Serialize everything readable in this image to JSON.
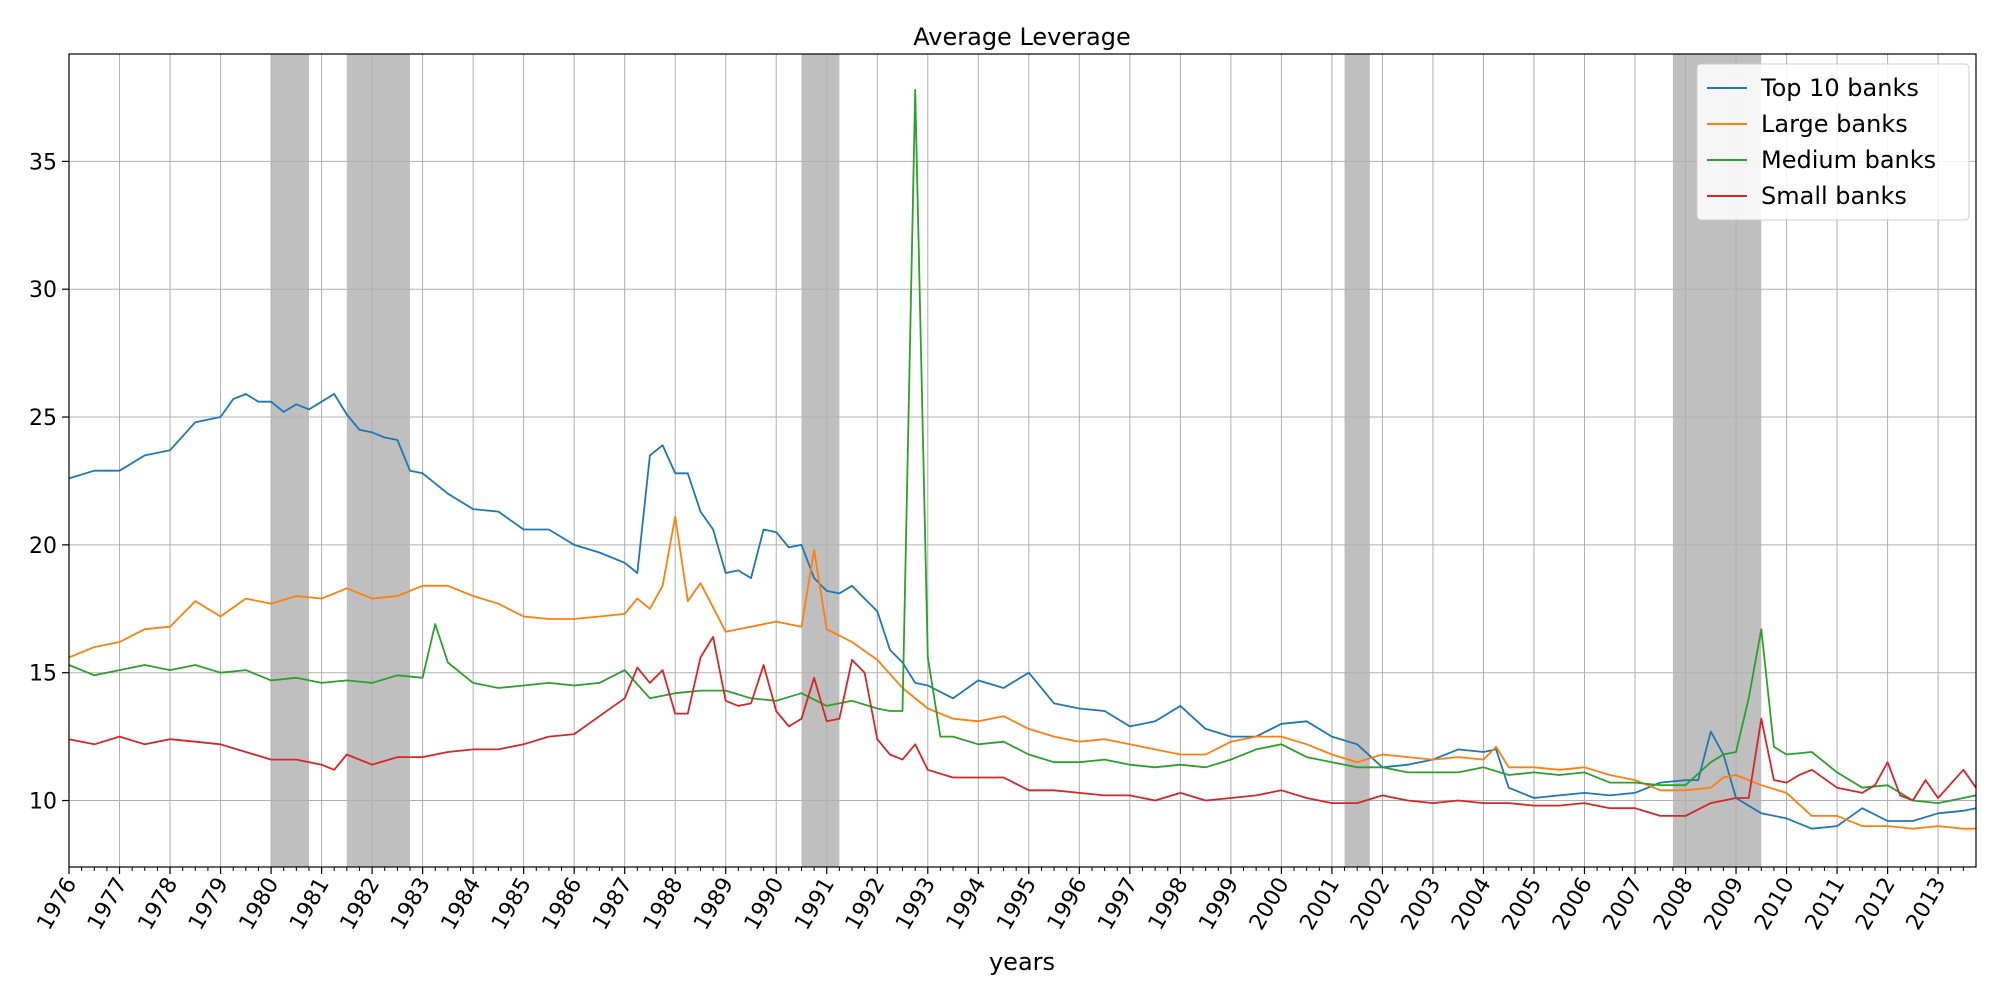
{
  "chart_data": {
    "type": "line",
    "title": "Average Leverage",
    "xlabel": "years",
    "ylabel": "",
    "xlim": [
      1976.0,
      2013.75
    ],
    "ylim": [
      7.4,
      39.2
    ],
    "yticks": [
      10,
      15,
      20,
      25,
      30,
      35
    ],
    "xtick_labels": [
      "1976",
      "1977",
      "1978",
      "1979",
      "1980",
      "1981",
      "1982",
      "1983",
      "1984",
      "1985",
      "1986",
      "1987",
      "1988",
      "1989",
      "1990",
      "1991",
      "1992",
      "1993",
      "1994",
      "1995",
      "1996",
      "1997",
      "1998",
      "1999",
      "2000",
      "2001",
      "2002",
      "2003",
      "2004",
      "2005",
      "2006",
      "2007",
      "2008",
      "2009",
      "2010",
      "2011",
      "2012",
      "2013"
    ],
    "grid": true,
    "legend_position": "top-right",
    "recessions": [
      [
        1980.0,
        1980.75
      ],
      [
        1981.5,
        1982.75
      ],
      [
        1990.5,
        1991.25
      ],
      [
        2001.25,
        2001.75
      ],
      [
        2007.75,
        2009.5
      ]
    ],
    "series": [
      {
        "name": "Top 10 banks",
        "color": "#1f77b4",
        "x_anchor": [
          1976.0,
          1976.5,
          1977.0,
          1977.5,
          1978.0,
          1978.5,
          1979.0,
          1979.25,
          1979.5,
          1979.75,
          1980.0,
          1980.25,
          1980.5,
          1980.75,
          1981.0,
          1981.25,
          1981.5,
          1981.75,
          1982.0,
          1982.25,
          1982.5,
          1982.75,
          1983.0,
          1983.5,
          1984.0,
          1984.5,
          1985.0,
          1985.5,
          1986.0,
          1986.5,
          1987.0,
          1987.25,
          1987.5,
          1987.75,
          1988.0,
          1988.25,
          1988.5,
          1988.75,
          1989.0,
          1989.25,
          1989.5,
          1989.75,
          1990.0,
          1990.25,
          1990.5,
          1990.75,
          1991.0,
          1991.25,
          1991.5,
          1991.75,
          1992.0,
          1992.25,
          1992.5,
          1992.75,
          1993.0,
          1993.5,
          1994.0,
          1994.5,
          1995.0,
          1995.5,
          1996.0,
          1996.5,
          1997.0,
          1997.5,
          1998.0,
          1998.5,
          1999.0,
          1999.5,
          2000.0,
          2000.5,
          2001.0,
          2001.5,
          2002.0,
          2002.5,
          2003.0,
          2003.5,
          2004.0,
          2004.25,
          2004.5,
          2005.0,
          2005.5,
          2006.0,
          2006.5,
          2007.0,
          2007.5,
          2008.0,
          2008.25,
          2008.5,
          2008.75,
          2009.0,
          2009.5,
          2010.0,
          2010.5,
          2011.0,
          2011.5,
          2012.0,
          2012.5,
          2013.0,
          2013.5,
          2013.75
        ],
        "y_anchor": [
          22.6,
          22.9,
          22.9,
          23.5,
          23.7,
          24.8,
          25.0,
          25.7,
          25.9,
          25.6,
          25.6,
          25.2,
          25.5,
          25.3,
          25.6,
          25.9,
          25.1,
          24.5,
          24.4,
          24.2,
          24.1,
          22.9,
          22.8,
          22.0,
          21.4,
          21.3,
          20.6,
          20.6,
          20.0,
          19.7,
          19.3,
          18.9,
          23.5,
          23.9,
          22.8,
          22.8,
          21.3,
          20.6,
          18.9,
          19.0,
          18.7,
          20.6,
          20.5,
          19.9,
          20.0,
          18.7,
          18.2,
          18.1,
          18.4,
          17.9,
          17.4,
          15.9,
          15.4,
          14.6,
          14.5,
          14.0,
          14.7,
          14.4,
          15.0,
          13.8,
          13.6,
          13.5,
          12.9,
          13.1,
          13.7,
          12.8,
          12.5,
          12.5,
          13.0,
          13.1,
          12.5,
          12.2,
          11.3,
          11.4,
          11.6,
          12.0,
          11.9,
          12.0,
          10.5,
          10.1,
          10.2,
          10.3,
          10.2,
          10.3,
          10.7,
          10.8,
          10.8,
          12.7,
          11.8,
          10.1,
          9.5,
          9.3,
          8.9,
          9.0,
          9.7,
          9.2,
          9.2,
          9.5,
          9.6,
          9.7
        ]
      },
      {
        "name": "Large banks",
        "color": "#ff7f0e",
        "x_anchor": [
          1976.0,
          1976.5,
          1977.0,
          1977.5,
          1978.0,
          1978.5,
          1979.0,
          1979.5,
          1980.0,
          1980.5,
          1981.0,
          1981.5,
          1982.0,
          1982.5,
          1983.0,
          1983.5,
          1984.0,
          1984.5,
          1985.0,
          1985.5,
          1986.0,
          1986.5,
          1987.0,
          1987.25,
          1987.5,
          1987.75,
          1988.0,
          1988.25,
          1988.5,
          1989.0,
          1989.5,
          1990.0,
          1990.5,
          1990.75,
          1991.0,
          1991.5,
          1992.0,
          1992.5,
          1993.0,
          1993.5,
          1994.0,
          1994.5,
          1995.0,
          1995.5,
          1996.0,
          1996.5,
          1997.0,
          1997.5,
          1998.0,
          1998.5,
          1999.0,
          1999.5,
          2000.0,
          2000.5,
          2001.0,
          2001.5,
          2002.0,
          2002.5,
          2003.0,
          2003.5,
          2004.0,
          2004.25,
          2004.5,
          2005.0,
          2005.5,
          2006.0,
          2006.5,
          2007.0,
          2007.5,
          2008.0,
          2008.5,
          2008.75,
          2009.0,
          2009.5,
          2010.0,
          2010.5,
          2011.0,
          2011.5,
          2012.0,
          2012.5,
          2013.0,
          2013.5,
          2013.75
        ],
        "y_anchor": [
          15.6,
          16.0,
          16.2,
          16.7,
          16.8,
          17.8,
          17.2,
          17.9,
          17.7,
          18.0,
          17.9,
          18.3,
          17.9,
          18.0,
          18.4,
          18.4,
          18.0,
          17.7,
          17.2,
          17.1,
          17.1,
          17.2,
          17.3,
          17.9,
          17.5,
          18.4,
          21.1,
          17.8,
          18.5,
          16.6,
          16.8,
          17.0,
          16.8,
          19.8,
          16.7,
          16.2,
          15.5,
          14.4,
          13.6,
          13.2,
          13.1,
          13.3,
          12.8,
          12.5,
          12.3,
          12.4,
          12.2,
          12.0,
          11.8,
          11.8,
          12.3,
          12.5,
          12.5,
          12.2,
          11.8,
          11.5,
          11.8,
          11.7,
          11.6,
          11.7,
          11.6,
          12.1,
          11.3,
          11.3,
          11.2,
          11.3,
          11.0,
          10.8,
          10.4,
          10.4,
          10.5,
          10.9,
          11.0,
          10.6,
          10.3,
          9.4,
          9.4,
          9.0,
          9.0,
          8.9,
          9.0,
          8.9,
          8.9
        ]
      },
      {
        "name": "Medium banks",
        "color": "#2ca02c",
        "x_anchor": [
          1976.0,
          1976.5,
          1977.0,
          1977.5,
          1978.0,
          1978.5,
          1979.0,
          1979.5,
          1980.0,
          1980.5,
          1981.0,
          1981.5,
          1982.0,
          1982.5,
          1983.0,
          1983.25,
          1983.5,
          1984.0,
          1984.5,
          1985.0,
          1985.5,
          1986.0,
          1986.5,
          1987.0,
          1987.5,
          1988.0,
          1988.5,
          1989.0,
          1989.5,
          1990.0,
          1990.5,
          1991.0,
          1991.5,
          1992.0,
          1992.25,
          1992.5,
          1992.75,
          1993.0,
          1993.25,
          1993.5,
          1994.0,
          1994.5,
          1995.0,
          1995.5,
          1996.0,
          1996.5,
          1997.0,
          1997.5,
          1998.0,
          1998.5,
          1999.0,
          1999.5,
          2000.0,
          2000.5,
          2001.0,
          2001.5,
          2002.0,
          2002.5,
          2003.0,
          2003.5,
          2004.0,
          2004.5,
          2005.0,
          2005.5,
          2006.0,
          2006.5,
          2007.0,
          2007.5,
          2008.0,
          2008.5,
          2008.75,
          2009.0,
          2009.25,
          2009.5,
          2009.75,
          2010.0,
          2010.5,
          2011.0,
          2011.5,
          2012.0,
          2012.5,
          2013.0,
          2013.5,
          2013.75
        ],
        "y_anchor": [
          15.3,
          14.9,
          15.1,
          15.3,
          15.1,
          15.3,
          15.0,
          15.1,
          14.7,
          14.8,
          14.6,
          14.7,
          14.6,
          14.9,
          14.8,
          16.9,
          15.4,
          14.6,
          14.4,
          14.5,
          14.6,
          14.5,
          14.6,
          15.1,
          14.0,
          14.2,
          14.3,
          14.3,
          14.0,
          13.9,
          14.2,
          13.7,
          13.9,
          13.6,
          13.5,
          13.5,
          37.8,
          15.6,
          12.5,
          12.5,
          12.2,
          12.3,
          11.8,
          11.5,
          11.5,
          11.6,
          11.4,
          11.3,
          11.4,
          11.3,
          11.6,
          12.0,
          12.2,
          11.7,
          11.5,
          11.3,
          11.3,
          11.1,
          11.1,
          11.1,
          11.3,
          11.0,
          11.1,
          11.0,
          11.1,
          10.7,
          10.7,
          10.6,
          10.6,
          11.5,
          11.8,
          11.9,
          14.0,
          16.7,
          12.1,
          11.8,
          11.9,
          11.1,
          10.5,
          10.6,
          10.0,
          9.9,
          10.1,
          10.2
        ]
      },
      {
        "name": "Small banks",
        "color": "#d62728",
        "x_anchor": [
          1976.0,
          1976.5,
          1977.0,
          1977.5,
          1978.0,
          1978.5,
          1979.0,
          1979.5,
          1980.0,
          1980.5,
          1981.0,
          1981.25,
          1981.5,
          1982.0,
          1982.5,
          1983.0,
          1983.5,
          1984.0,
          1984.5,
          1985.0,
          1985.5,
          1986.0,
          1986.5,
          1987.0,
          1987.25,
          1987.5,
          1987.75,
          1988.0,
          1988.25,
          1988.5,
          1988.75,
          1989.0,
          1989.25,
          1989.5,
          1989.75,
          1990.0,
          1990.25,
          1990.5,
          1990.75,
          1991.0,
          1991.25,
          1991.5,
          1991.75,
          1992.0,
          1992.25,
          1992.5,
          1992.75,
          1993.0,
          1993.5,
          1994.0,
          1994.5,
          1995.0,
          1995.5,
          1996.0,
          1996.5,
          1997.0,
          1997.5,
          1998.0,
          1998.5,
          1999.0,
          1999.5,
          2000.0,
          2000.5,
          2001.0,
          2001.5,
          2002.0,
          2002.5,
          2003.0,
          2003.5,
          2004.0,
          2004.5,
          2005.0,
          2005.5,
          2006.0,
          2006.5,
          2007.0,
          2007.5,
          2008.0,
          2008.5,
          2009.0,
          2009.25,
          2009.5,
          2009.75,
          2010.0,
          2010.25,
          2010.5,
          2011.0,
          2011.5,
          2011.75,
          2012.0,
          2012.25,
          2012.5,
          2012.75,
          2013.0,
          2013.5,
          2013.75
        ],
        "y_anchor": [
          12.4,
          12.2,
          12.5,
          12.2,
          12.4,
          12.3,
          12.2,
          11.9,
          11.6,
          11.6,
          11.4,
          11.2,
          11.8,
          11.4,
          11.7,
          11.7,
          11.9,
          12.0,
          12.0,
          12.2,
          12.5,
          12.6,
          13.3,
          14.0,
          15.2,
          14.6,
          15.1,
          13.4,
          13.4,
          15.6,
          16.4,
          13.9,
          13.7,
          13.8,
          15.3,
          13.5,
          12.9,
          13.2,
          14.8,
          13.1,
          13.2,
          15.5,
          15.0,
          12.4,
          11.8,
          11.6,
          12.2,
          11.2,
          10.9,
          10.9,
          10.9,
          10.4,
          10.4,
          10.3,
          10.2,
          10.2,
          10.0,
          10.3,
          10.0,
          10.1,
          10.2,
          10.4,
          10.1,
          9.9,
          9.9,
          10.2,
          10.0,
          9.9,
          10.0,
          9.9,
          9.9,
          9.8,
          9.8,
          9.9,
          9.7,
          9.7,
          9.4,
          9.4,
          9.9,
          10.1,
          10.1,
          13.2,
          10.8,
          10.7,
          11.0,
          11.2,
          10.5,
          10.3,
          10.6,
          11.5,
          10.2,
          10.0,
          10.8,
          10.1,
          11.2,
          10.5
        ]
      }
    ]
  }
}
